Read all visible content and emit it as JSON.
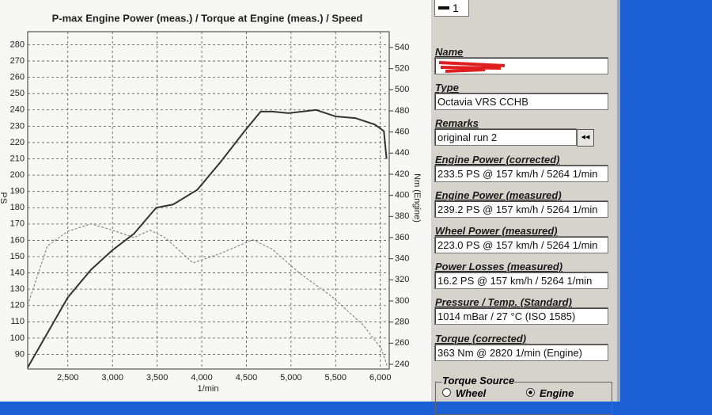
{
  "chart_data": {
    "type": "line",
    "title": "P-max Engine Power (meas.) / Torque at Engine (meas.) / Speed",
    "xlabel": "1/min",
    "ylabel": "PS",
    "y2label": "Nm (Engine)",
    "xlim": [
      2050,
      6100
    ],
    "xticks": [
      {
        "value": 2500,
        "label": "2,500"
      },
      {
        "value": 3000,
        "label": "3,000"
      },
      {
        "value": 3500,
        "label": "3,500"
      },
      {
        "value": 4000,
        "label": "4,000"
      },
      {
        "value": 4500,
        "label": "4,500"
      },
      {
        "value": 5000,
        "label": "5,000"
      },
      {
        "value": 5500,
        "label": "5,500"
      },
      {
        "value": 6000,
        "label": "6,000"
      }
    ],
    "ylim": [
      81,
      288
    ],
    "yticks": [
      90,
      100,
      110,
      120,
      130,
      140,
      150,
      160,
      170,
      180,
      190,
      200,
      210,
      220,
      230,
      240,
      250,
      260,
      270,
      280
    ],
    "y2lim": [
      235.5,
      555
    ],
    "y2ticks": [
      240,
      260,
      280,
      300,
      320,
      340,
      360,
      380,
      400,
      420,
      440,
      460,
      480,
      500,
      520,
      540
    ],
    "grid": true,
    "series": [
      {
        "name": "Engine Power (meas.)",
        "color": "#333333",
        "style": "solid",
        "x": [
          2050,
          2270,
          2500,
          2760,
          3000,
          3240,
          3490,
          3680,
          3950,
          4210,
          4480,
          4660,
          4790,
          4970,
          5280,
          5500,
          5720,
          5940,
          6040,
          6070
        ],
        "values": [
          82,
          103,
          125,
          142,
          154,
          164,
          180,
          182,
          191,
          208,
          227,
          239,
          239,
          238,
          240,
          236,
          235,
          231,
          227,
          210
        ]
      },
      {
        "name": "Torque at Engine (meas.)",
        "color": "#777777",
        "style": "dashed",
        "axis": "y2",
        "x": [
          2050,
          2270,
          2500,
          2760,
          3000,
          3240,
          3420,
          3590,
          3900,
          4210,
          4570,
          4790,
          5100,
          5460,
          5810,
          6010,
          6080
        ],
        "values": [
          296,
          352,
          366,
          373,
          367,
          360,
          367,
          360,
          336,
          345,
          358,
          349,
          326,
          304,
          277,
          255,
          238
        ]
      }
    ]
  },
  "panel": {
    "tab": "1",
    "fields": [
      {
        "label": "Name"
      },
      {
        "label": "Type",
        "value": "Octavia VRS CCHB"
      },
      {
        "label": "Remarks",
        "value": "original run 2"
      },
      {
        "label": "Engine Power (corrected)",
        "value": "233.5 PS @ 157 km/h / 5264 1/min"
      },
      {
        "label": "Engine Power (measured)",
        "value": "239.2 PS @ 157 km/h / 5264 1/min"
      },
      {
        "label": "Wheel Power (measured)",
        "value": "223.0 PS @ 157 km/h / 5264 1/min"
      },
      {
        "label": "Power Losses (measured)",
        "value": "16.2 PS @ 157 km/h / 5264 1/min"
      },
      {
        "label": "Pressure / Temp. (Standard)",
        "value": "1014 mBar / 27 °C (ISO 1585)"
      },
      {
        "label": "Torque (corrected)",
        "value": "363 Nm @ 2820 1/min (Engine)"
      }
    ],
    "torque_source": {
      "label": "Torque Source",
      "options": [
        "Wheel",
        "Engine"
      ]
    }
  }
}
